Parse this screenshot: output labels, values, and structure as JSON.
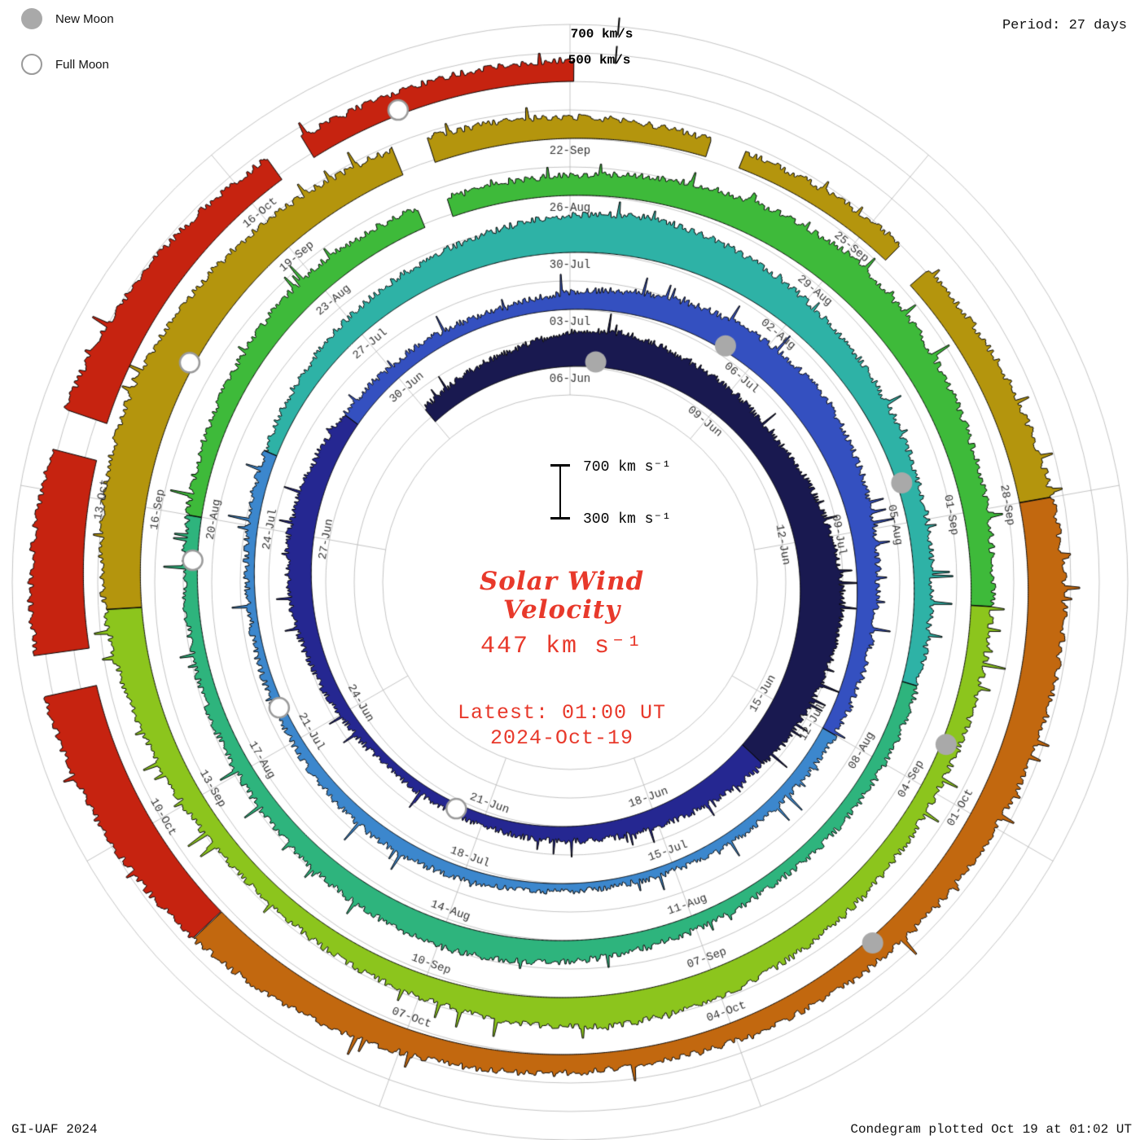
{
  "header": {
    "legend": [
      {
        "label": "New Moon",
        "type": "filled"
      },
      {
        "label": "Full Moon",
        "type": "open"
      }
    ],
    "period_label": "Period: 27 days",
    "outer_scale_labels": [
      {
        "text": "700 km/s",
        "level": 700
      },
      {
        "text": "500 km/s",
        "level": 500
      }
    ]
  },
  "center": {
    "title_line1": "Solar Wind",
    "title_line2": "Velocity",
    "current_value": "447 km s⁻¹",
    "latest_line1": "Latest: 01:00 UT",
    "latest_line2": "2024-Oct-19",
    "scale_bar": {
      "top_label": "700 km s⁻¹",
      "bottom_label": "300 km s⁻¹",
      "top_value": 700,
      "bottom_value": 300
    }
  },
  "footer": {
    "left": "GI-UAF 2024",
    "right": "Condegram plotted Oct 19 at 01:02 UT"
  },
  "colors": {
    "accent_red": "#e8392b",
    "grid": "#b5b5b5",
    "moon_gray": "#a9a9a9",
    "moon_open_stroke": "#9a9a9a",
    "trace_outline": "#000000",
    "date_label": "#333333"
  },
  "chart_data": {
    "type": "spiral-condegram",
    "title": "Solar Wind Velocity",
    "units": "km/s",
    "period_days": 27,
    "anchor_top_date": "2024-06-06",
    "start_date": "2024-06-03",
    "end_datetime": "2024-10-19T01:00",
    "current_value_km_s": 447,
    "radial_scale": {
      "baseline_km_s": 300,
      "mid_km_s": 500,
      "max_km_s": 700
    },
    "grid": {
      "circles": true,
      "spokes_deg": 40,
      "label_step_days": 3
    },
    "date_labels": [
      "06-Jun",
      "09-Jun",
      "12-Jun",
      "15-Jun",
      "18-Jun",
      "21-Jun",
      "24-Jun",
      "27-Jun",
      "30-Jun",
      "03-Jul",
      "06-Jul",
      "09-Jul",
      "12-Jul",
      "15-Jul",
      "18-Jul",
      "21-Jul",
      "24-Jul",
      "27-Jul",
      "30-Jul",
      "02-Aug",
      "05-Aug",
      "08-Aug",
      "11-Aug",
      "14-Aug",
      "17-Aug",
      "20-Aug",
      "23-Aug",
      "26-Aug",
      "29-Aug",
      "01-Sep",
      "04-Sep",
      "07-Sep",
      "10-Sep",
      "13-Sep",
      "16-Sep",
      "19-Sep",
      "22-Sep",
      "25-Sep",
      "28-Sep",
      "01-Oct",
      "04-Oct",
      "07-Oct",
      "10-Oct",
      "13-Oct",
      "16-Oct"
    ],
    "new_moon_dates": [
      "2024-06-06",
      "2024-07-05",
      "2024-08-04",
      "2024-09-03",
      "2024-10-02"
    ],
    "full_moon_dates": [
      "2024-06-21",
      "2024-07-21",
      "2024-08-19",
      "2024-09-17",
      "2024-10-17"
    ],
    "color_segments": [
      {
        "start": "2024-06-03",
        "color": "#191950"
      },
      {
        "start": "2024-06-16",
        "color": "#252791"
      },
      {
        "start": "2024-06-29",
        "color": "#3450c0"
      },
      {
        "start": "2024-07-12",
        "color": "#3c87cd"
      },
      {
        "start": "2024-07-25",
        "color": "#2eb2a6"
      },
      {
        "start": "2024-08-07",
        "color": "#2eb47d"
      },
      {
        "start": "2024-08-20",
        "color": "#3eba3a"
      },
      {
        "start": "2024-09-02",
        "color": "#8cc51d"
      },
      {
        "start": "2024-09-15",
        "color": "#b4950d"
      },
      {
        "start": "2024-09-28",
        "color": "#c2680f"
      },
      {
        "start": "2024-10-09",
        "color": "#c62310"
      }
    ],
    "data_gaps": [
      "2024-08-24",
      "2024-09-20",
      "2024-09-23",
      "2024-09-25",
      "2024-10-11",
      "2024-10-13",
      "2024-10-16"
    ],
    "daily_velocities": {
      "start": "2024-06-03",
      "values": [
        420,
        450,
        480,
        540,
        560,
        520,
        500,
        480,
        520,
        560,
        600,
        580,
        540,
        500,
        460,
        430,
        410,
        395,
        380,
        370,
        360,
        380,
        420,
        460,
        480,
        450,
        420,
        400,
        390,
        380,
        420,
        460,
        500,
        520,
        540,
        500,
        470,
        440,
        420,
        400,
        380,
        370,
        360,
        350,
        360,
        380,
        400,
        390,
        370,
        360,
        350,
        370,
        390,
        420,
        450,
        480,
        520,
        560,
        590,
        560,
        520,
        490,
        460,
        440,
        420,
        410,
        400,
        390,
        380,
        400,
        430,
        460,
        480,
        460,
        430,
        410,
        400,
        390,
        400,
        420,
        450,
        470,
        450,
        430,
        440,
        480,
        520,
        560,
        540,
        500,
        470,
        450,
        430,
        420,
        440,
        470,
        500,
        520,
        490,
        460,
        440,
        420,
        450,
        500,
        560,
        600,
        620,
        580,
        540,
        500,
        470,
        450,
        430,
        420,
        440,
        470,
        500,
        530,
        560,
        540,
        500,
        470,
        450,
        430,
        420,
        440,
        470,
        520,
        570,
        620,
        660,
        680,
        640,
        590,
        540,
        490,
        460,
        450,
        447
      ]
    }
  }
}
